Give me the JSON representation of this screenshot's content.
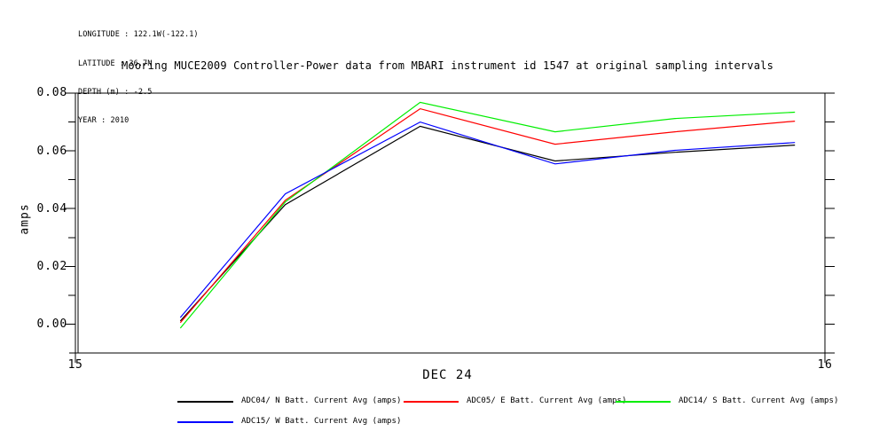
{
  "window": {
    "background": "#ffffff"
  },
  "meta_block": {
    "longitude": "LONGITUDE : 122.1W(-122.1)",
    "latitude": "LATITUDE : 36.7N",
    "depth": "DEPTH (m) : -2.5",
    "year": "YEAR : 2010"
  },
  "title": "Mooring MUCE2009 Controller-Power data from MBARI instrument id 1547 at original sampling intervals",
  "chart_data": {
    "type": "line",
    "title": "Mooring MUCE2009 Controller-Power data from MBARI instrument id 1547 at original sampling intervals",
    "xlabel": "DEC 24",
    "ylabel": "amps",
    "xlim": [
      15,
      16
    ],
    "ylim": [
      -0.01,
      0.08
    ],
    "grid": false,
    "legend_position": "bottom",
    "xtick_values": [
      15,
      16
    ],
    "xtick_labels": [
      "15",
      "16"
    ],
    "ytick_major_values": [
      0.08,
      0.06,
      0.04,
      0.02,
      0.0
    ],
    "ytick_major_labels": [
      "0.08",
      "0.06",
      "0.04",
      "0.02",
      "0.00"
    ],
    "ytick_minor_values": [
      0.07,
      0.05,
      0.03,
      0.01
    ],
    "right_axis_tick_step": 0.01,
    "x": [
      15.14,
      15.28,
      15.46,
      15.64,
      15.8,
      15.96
    ],
    "series": [
      {
        "name": "ADC04/ N Batt. Current Avg (amps)",
        "color": "#000000",
        "values": [
          0.0011,
          0.0414,
          0.0685,
          0.0565,
          0.0595,
          0.062
        ]
      },
      {
        "name": "ADC05/ E Batt. Current Avg (amps)",
        "color": "#ff0000",
        "values": [
          0.0005,
          0.0429,
          0.0746,
          0.0623,
          0.0666,
          0.0703
        ]
      },
      {
        "name": "ADC14/ S Batt. Current Avg (amps)",
        "color": "#00ee00",
        "values": [
          -0.0014,
          0.0423,
          0.0768,
          0.0666,
          0.0712,
          0.0734
        ]
      },
      {
        "name": "ADC15/ W Batt. Current Avg (amps)",
        "color": "#0000ff",
        "values": [
          0.0023,
          0.0451,
          0.07,
          0.0555,
          0.0602,
          0.0629
        ]
      }
    ]
  },
  "legend": {
    "items": [
      {
        "label": "ADC04/ N Batt. Current Avg (amps)",
        "color": "#000000"
      },
      {
        "label": "ADC05/ E Batt. Current Avg (amps)",
        "color": "#ff0000"
      },
      {
        "label": "ADC14/ S Batt. Current Avg (amps)",
        "color": "#00ee00"
      },
      {
        "label": "ADC15/ W Batt. Current Avg (amps)",
        "color": "#0000ff"
      }
    ]
  }
}
